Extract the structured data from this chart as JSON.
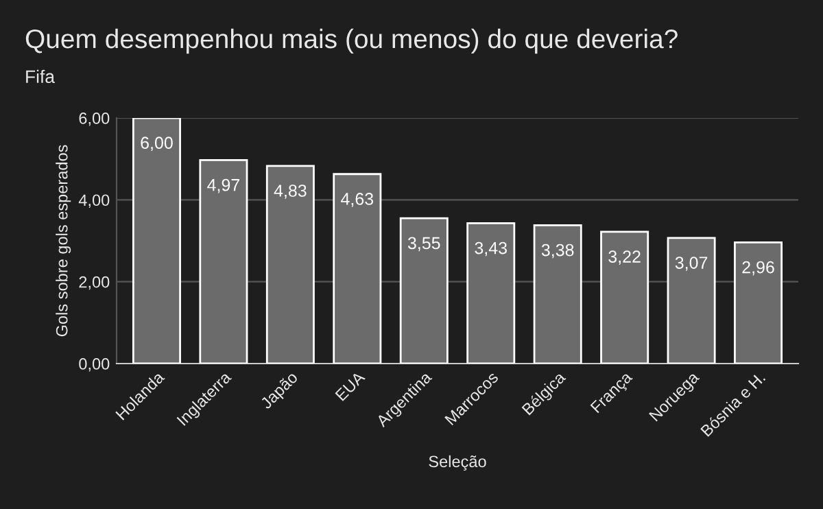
{
  "chart_data": {
    "type": "bar",
    "title": "Quem desempenhou mais (ou menos) do que deveria?",
    "subtitle": "Fifa",
    "xlabel": "Seleção",
    "ylabel": "Gols sobre gols esperados",
    "categories": [
      "Holanda",
      "Inglaterra",
      "Japão",
      "EUA",
      "Argentina",
      "Marrocos",
      "Bélgica",
      "França",
      "Noruega",
      "Bósnia e H."
    ],
    "values": [
      6.0,
      4.97,
      4.83,
      4.63,
      3.55,
      3.43,
      3.38,
      3.22,
      3.07,
      2.96
    ],
    "value_labels": [
      "6,00",
      "4,97",
      "4,83",
      "4,63",
      "3,55",
      "3,43",
      "3,38",
      "3,22",
      "3,07",
      "2,96"
    ],
    "color": "#6b6b6b",
    "ylim": [
      0,
      6
    ],
    "yticks": [
      {
        "value": 0,
        "label": "0,00"
      },
      {
        "value": 2,
        "label": "2,00"
      },
      {
        "value": 4,
        "label": "4,00"
      },
      {
        "value": 6,
        "label": "6,00"
      }
    ],
    "grid": "y",
    "legend": false
  }
}
